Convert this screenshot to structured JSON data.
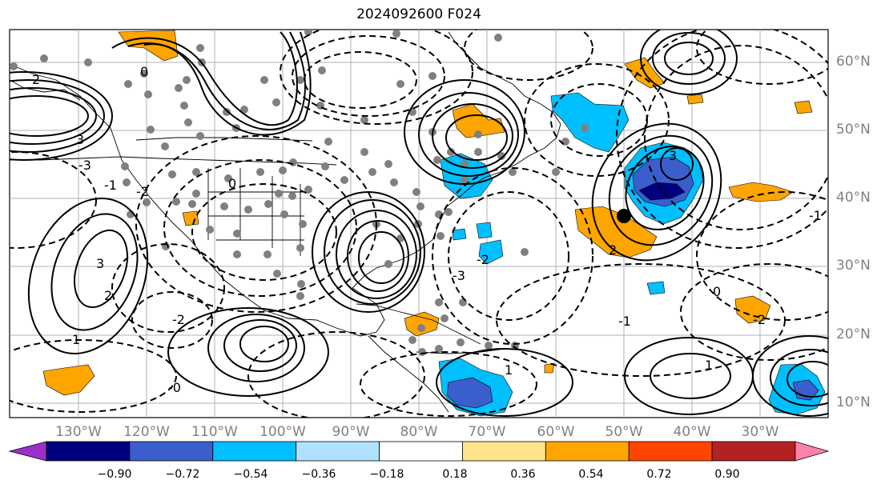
{
  "title": "2024092600 F024",
  "lat_labels": [
    "60°N",
    "50°N",
    "40°N",
    "30°N",
    "20°N",
    "10°N"
  ],
  "lon_labels": [
    "130°W",
    "120°W",
    "110°W",
    "100°W",
    "90°W",
    "80°W",
    "70°W",
    "60°W",
    "50°W",
    "40°W",
    "30°W"
  ],
  "colorbar": {
    "ticks": [
      "−0.90",
      "−0.72",
      "−0.54",
      "−0.36",
      "−0.18",
      "0.18",
      "0.36",
      "0.54",
      "0.72",
      "0.90"
    ],
    "colors": [
      "#9b30c8",
      "#00007f",
      "#3a5fcd",
      "#00bfff",
      "#b0e2ff",
      "#ffffff",
      "#ffe58a",
      "#ffa500",
      "#ff4500",
      "#b22222",
      "#ff82ab"
    ]
  },
  "contour_labels": [
    "0",
    "2",
    "3",
    "-1",
    "-2",
    "-3",
    "1",
    "-0",
    "3",
    "2",
    "0",
    "-2",
    "1",
    "-1",
    "3",
    "2",
    "-2",
    "0",
    "-1",
    "1",
    "-3",
    "-2"
  ],
  "marker": "black dot"
}
